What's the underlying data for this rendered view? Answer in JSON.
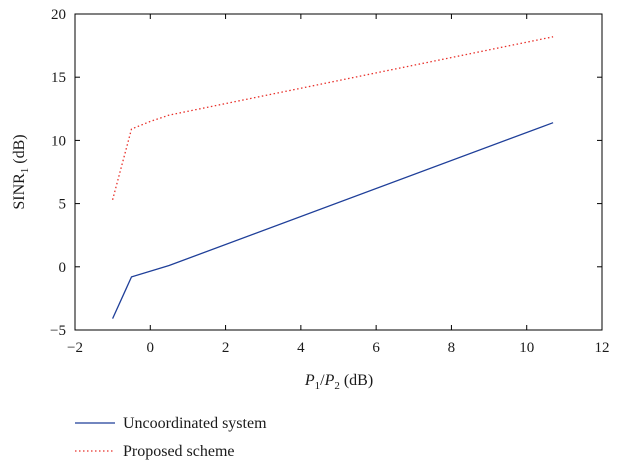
{
  "chart_data": {
    "type": "line",
    "xlabel": {
      "P": "P",
      "sub1": "1",
      "slash": "/",
      "sub2": "2",
      "unit": " (dB)"
    },
    "ylabel": {
      "main": "SINR",
      "sub": "1",
      "unit": " (dB)"
    },
    "xlim": [
      -2,
      12
    ],
    "ylim": [
      -5,
      20
    ],
    "xticks": [
      -2,
      0,
      2,
      4,
      6,
      8,
      10,
      12
    ],
    "yticks": [
      -5,
      0,
      5,
      10,
      15,
      20
    ],
    "xtick_labels": [
      "−2",
      "0",
      "2",
      "4",
      "6",
      "8",
      "10",
      "12"
    ],
    "ytick_labels": [
      "−5",
      "0",
      "5",
      "10",
      "15",
      "20"
    ],
    "grid": false,
    "legend_position": "below",
    "series": [
      {
        "name": "Uncoordinated system",
        "style": "solid",
        "color": "#1f3f99",
        "x": [
          -1.0,
          -0.5,
          0.5,
          10.7
        ],
        "y": [
          -4.1,
          -0.8,
          0.1,
          11.4
        ]
      },
      {
        "name": "Proposed scheme",
        "style": "dotted",
        "color": "#e8302a",
        "x": [
          -1.0,
          -0.5,
          0.0,
          0.5,
          10.7
        ],
        "y": [
          5.3,
          10.9,
          11.5,
          12.0,
          18.2
        ]
      }
    ]
  }
}
